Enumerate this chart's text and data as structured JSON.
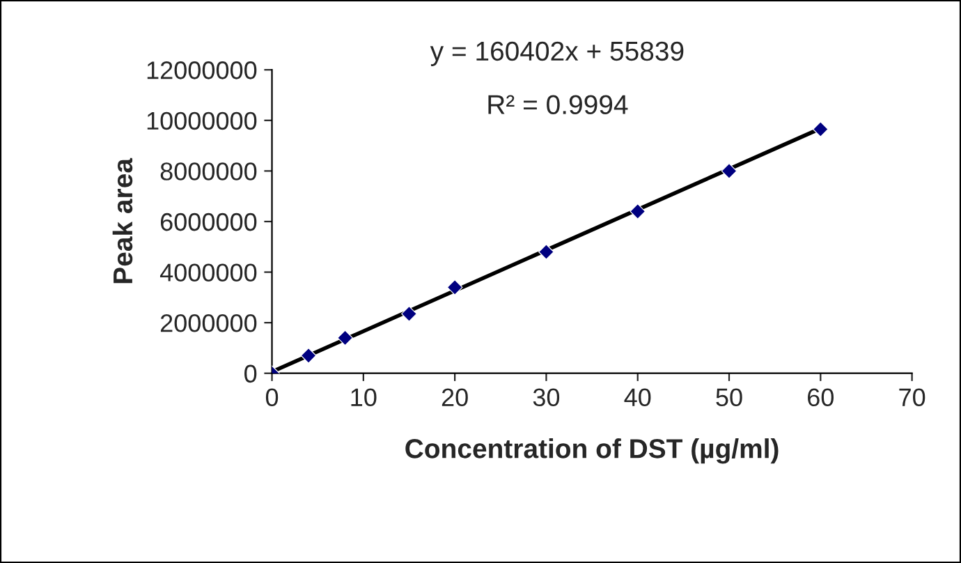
{
  "chart_data": {
    "type": "scatter",
    "xlabel": "Concentration of DST (µg/ml)",
    "ylabel": "Peak area",
    "x": [
      0,
      4,
      8,
      15,
      20,
      30,
      40,
      50,
      60
    ],
    "series": [
      {
        "color": "#000080",
        "marker": "diamond",
        "values": [
          0,
          700000,
          1400000,
          2350000,
          3400000,
          4800000,
          6400000,
          8000000,
          9650000
        ]
      },
      {
        "type": "line",
        "color": "#000000",
        "marker": "none",
        "x": [
          0,
          60
        ],
        "values": [
          60000,
          9680000
        ]
      }
    ],
    "annotations": [
      "y = 160402x + 55839",
      "R² = 0.9994"
    ],
    "xlim": [
      0,
      70
    ],
    "xticks": [
      0,
      10,
      20,
      30,
      40,
      50,
      60,
      70
    ],
    "ylim": [
      0,
      12000000
    ],
    "yticks": [
      0,
      2000000,
      4000000,
      6000000,
      8000000,
      10000000,
      12000000
    ],
    "grid": false,
    "legend": false
  }
}
